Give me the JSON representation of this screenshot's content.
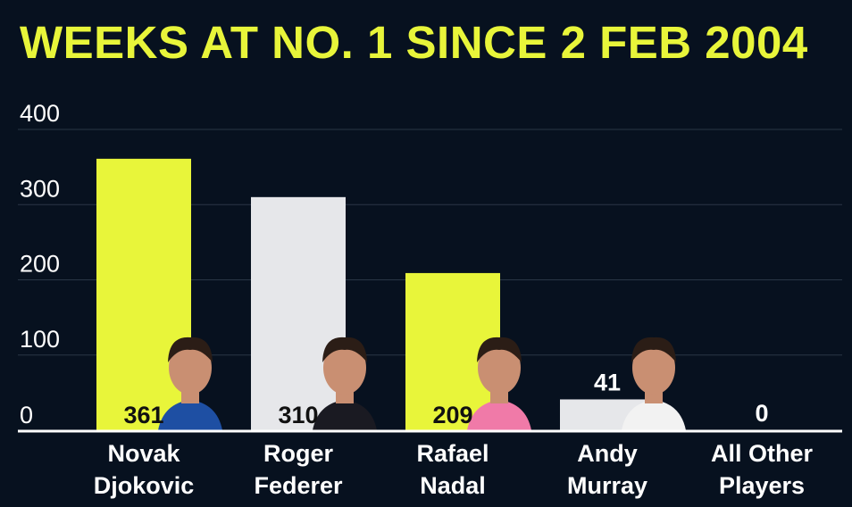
{
  "chart_data": {
    "type": "bar",
    "title": "WEEKS AT NO. 1 SINCE 2 FEB 2004",
    "categories": [
      [
        "Novak",
        "Djokovic"
      ],
      [
        "Roger",
        "Federer"
      ],
      [
        "Rafael",
        "Nadal"
      ],
      [
        "Andy",
        "Murray"
      ],
      [
        "All Other",
        "Players"
      ]
    ],
    "values": [
      361,
      310,
      209,
      41,
      0
    ],
    "ylim": [
      0,
      400
    ],
    "yticks": [
      0,
      100,
      200,
      300,
      400
    ],
    "grid": true,
    "bar_colors": [
      "#e8f53a",
      "#e6e7ea",
      "#e8f53a",
      "#e6e7ea",
      "#e6e7ea"
    ],
    "player_photos": [
      "Novak Djokovic",
      "Roger Federer",
      "Rafael Nadal",
      "Andy Murray",
      null
    ]
  },
  "colors": {
    "background": "#07111f",
    "accent": "#e8f53a",
    "light_bar": "#e6e7ea",
    "grid": "#2a3646",
    "text": "#ffffff",
    "value_on_bar": "#111111"
  }
}
